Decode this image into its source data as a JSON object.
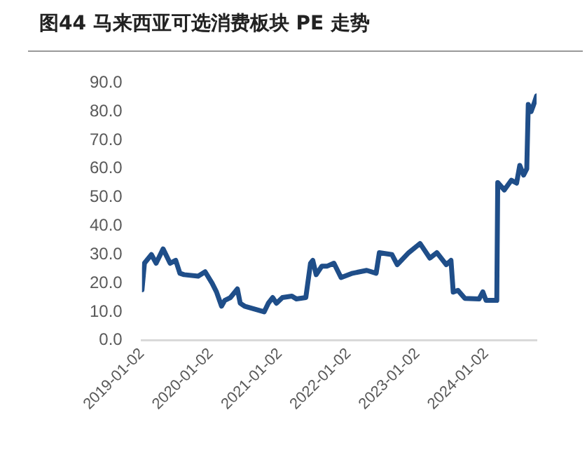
{
  "chart_data": {
    "type": "line",
    "title": "图44 马来西亚可选消费板块 PE 走势",
    "x": [
      "2019-01-02",
      "2019-01-15",
      "2019-02-21",
      "2019-03-18",
      "2019-04-24",
      "2019-05-31",
      "2019-06-30",
      "2019-07-22",
      "2019-08-13",
      "2019-10-27",
      "2019-12-03",
      "2020-01-09",
      "2020-02-01",
      "2020-02-28",
      "2020-03-16",
      "2020-04-15",
      "2020-05-22",
      "2020-06-06",
      "2020-06-29",
      "2020-08-20",
      "2020-10-11",
      "2020-11-02",
      "2020-11-25",
      "2020-12-15",
      "2021-01-16",
      "2021-03-07",
      "2021-03-31",
      "2021-05-20",
      "2021-06-14",
      "2021-06-26",
      "2021-07-14",
      "2021-08-13",
      "2021-09-11",
      "2021-10-16",
      "2021-11-23",
      "2022-01-23",
      "2022-04-08",
      "2022-05-28",
      "2022-06-14",
      "2022-08-20",
      "2022-09-17",
      "2022-11-17",
      "2023-01-16",
      "2023-03-09",
      "2023-04-15",
      "2023-06-04",
      "2023-06-29",
      "2023-07-11",
      "2023-08-05",
      "2023-09-11",
      "2023-11-25",
      "2023-12-15",
      "2024-01-01",
      "2024-02-27",
      "2024-03-03",
      "2024-04-07",
      "2024-05-14",
      "2024-06-11",
      "2024-06-28",
      "2024-07-18",
      "2024-08-04",
      "2024-08-12",
      "2024-08-27",
      "2024-09-10",
      "2024-09-25"
    ],
    "series": [
      {
        "color": "#1f4e89",
        "values": [
          17.7,
          27,
          30,
          27,
          32,
          27,
          28,
          23.5,
          23,
          22.5,
          24,
          20,
          17,
          12,
          14,
          15,
          18,
          13,
          12,
          11,
          10,
          13,
          15,
          13,
          15,
          15.5,
          14.5,
          15,
          27,
          28,
          23,
          26,
          26,
          27,
          22,
          23.5,
          24.5,
          23.5,
          30.7,
          30,
          26.5,
          30.7,
          33.9,
          28.8,
          30.7,
          26.5,
          28,
          16.9,
          17.5,
          14.7,
          14.5,
          17,
          14,
          14,
          55.2,
          52.6,
          56,
          55,
          61.2,
          57.8,
          60,
          82.5,
          80,
          82.5,
          85.5
        ]
      }
    ],
    "xlim": [
      "2019-01-02",
      "2024-09-25"
    ],
    "xticks": [
      "2019-01-02",
      "2020-01-02",
      "2021-01-02",
      "2022-01-02",
      "2023-01-02",
      "2024-01-02"
    ],
    "ylim": [
      0,
      90
    ],
    "yticks": [
      {
        "value": 0,
        "label": "0.0"
      },
      {
        "value": 10,
        "label": "10.0"
      },
      {
        "value": 20,
        "label": "20.0"
      },
      {
        "value": 30,
        "label": "30.0"
      },
      {
        "value": 40,
        "label": "40.0"
      },
      {
        "value": 50,
        "label": "50.0"
      },
      {
        "value": 60,
        "label": "60.0"
      },
      {
        "value": 70,
        "label": "70.0"
      },
      {
        "value": 80,
        "label": "80.0"
      },
      {
        "value": 90,
        "label": "90.0"
      }
    ],
    "grid": false,
    "legend": false,
    "marker": "none",
    "line_style": "solid"
  }
}
